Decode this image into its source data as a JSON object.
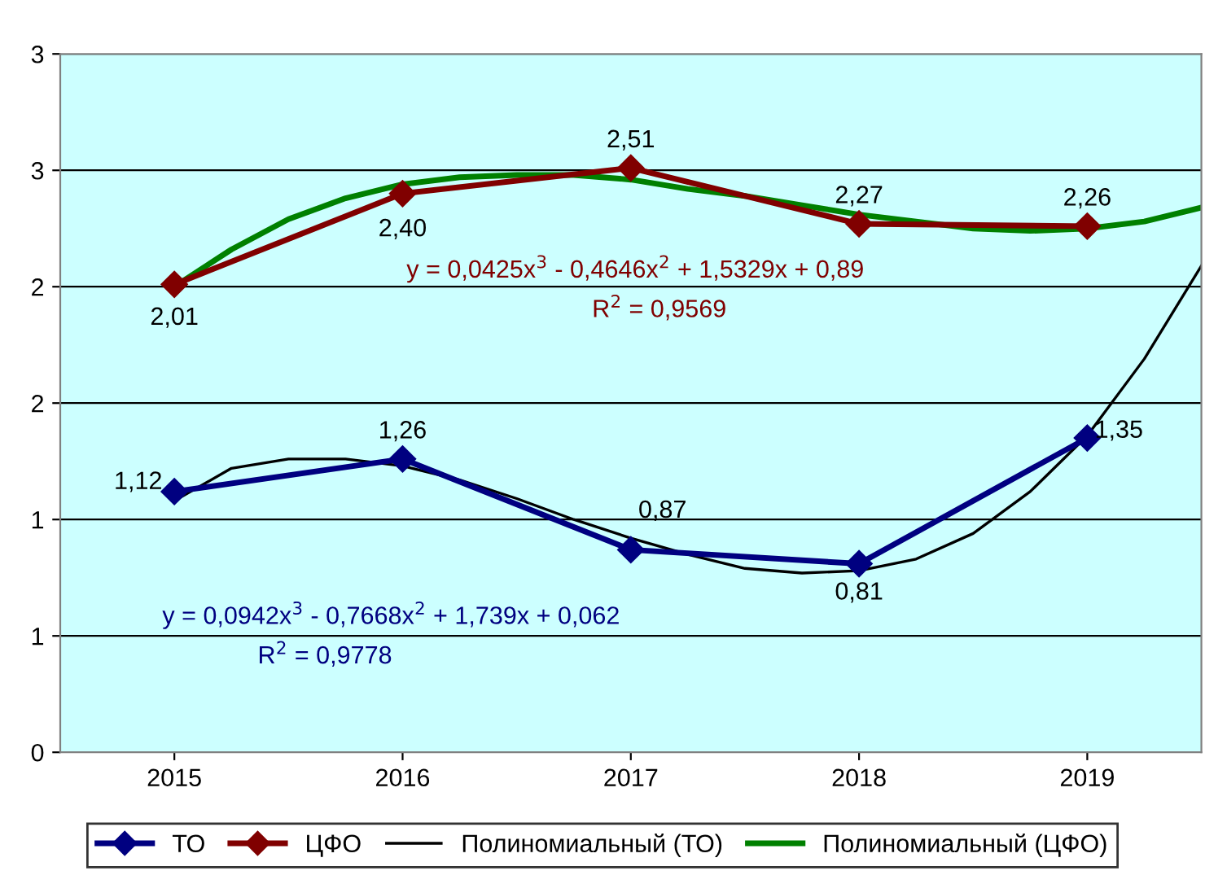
{
  "chart_data": {
    "type": "line",
    "x": [
      2015,
      2016,
      2017,
      2018,
      2019
    ],
    "xlim": [
      2014.5,
      2019.5
    ],
    "xticks": [
      2015,
      2016,
      2017,
      2018,
      2019
    ],
    "ylim": [
      0,
      3
    ],
    "yticks": [
      0,
      {
        "value": 0.5,
        "label": "1"
      },
      1,
      {
        "value": 1.5,
        "label": "2"
      },
      2,
      {
        "value": 2.5,
        "label": "3"
      },
      3
    ],
    "grid": "y",
    "legend": "bottom",
    "series": [
      {
        "name": "ТО",
        "color": "#000080",
        "marker": "diamond",
        "values": [
          1.12,
          1.26,
          0.87,
          0.81,
          1.35
        ],
        "value_labels": [
          "1,12",
          "1,26",
          "0,87",
          "0,81",
          "1,35"
        ]
      },
      {
        "name": "ЦФО",
        "color": "#800000",
        "marker": "diamond",
        "values": [
          2.01,
          2.4,
          2.51,
          2.27,
          2.26
        ],
        "value_labels": [
          "2,01",
          "2,40",
          "2,51",
          "2,27",
          "2,26"
        ]
      },
      {
        "name": "Полиномиальный (ТО)",
        "color": "#000000",
        "marker": "none",
        "x": [
          2015,
          2015.25,
          2015.5,
          2015.75,
          2016,
          2016.25,
          2016.5,
          2016.75,
          2017,
          2017.25,
          2017.5,
          2017.75,
          2018,
          2018.25,
          2018.5,
          2018.75,
          2019,
          2019.25,
          2019.5
        ],
        "values": [
          1.08,
          1.22,
          1.26,
          1.26,
          1.23,
          1.17,
          1.09,
          1.0,
          0.92,
          0.85,
          0.79,
          0.77,
          0.78,
          0.83,
          0.94,
          1.12,
          1.36,
          1.69,
          2.09
        ]
      },
      {
        "name": "Полиномиальный (ЦФО)",
        "color": "#008000",
        "marker": "none",
        "x": [
          2015,
          2015.25,
          2015.5,
          2015.75,
          2016,
          2016.25,
          2016.5,
          2016.75,
          2017,
          2017.25,
          2017.5,
          2017.75,
          2018,
          2018.25,
          2018.5,
          2018.75,
          2019,
          2019.25,
          2019.5
        ],
        "values": [
          2.0,
          2.16,
          2.29,
          2.38,
          2.44,
          2.47,
          2.48,
          2.48,
          2.46,
          2.42,
          2.39,
          2.35,
          2.31,
          2.28,
          2.25,
          2.24,
          2.25,
          2.28,
          2.34
        ]
      }
    ],
    "annotations": [
      "y = 0,0942x$^{3}$ - 0,7668x$^{2}$ + 1,739x + 0,062",
      "R$^{2}$ = 0,9778",
      "y = 0,0425x$^{3}$ - 0,4646x$^{2}$ + 1,5329x + 0,89",
      "R$^{2}$ = 0,9569"
    ]
  }
}
